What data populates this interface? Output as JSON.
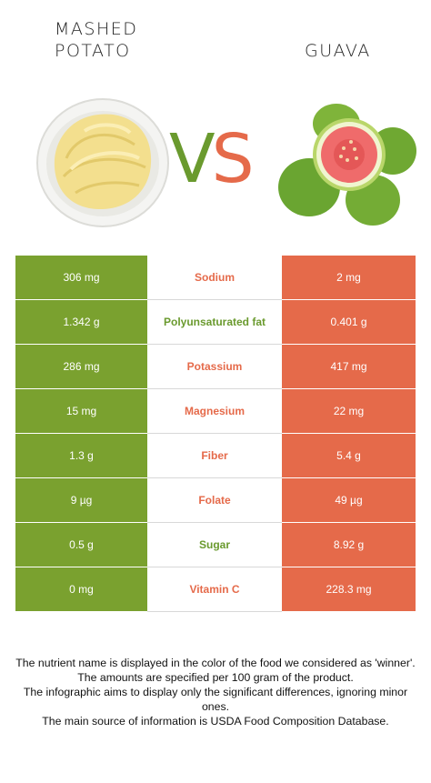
{
  "header": {
    "left_title": "MASHED POTATO",
    "right_title": "GUAVA",
    "vs_v": "V",
    "vs_s": "S"
  },
  "colors": {
    "left_food": "#7aa12f",
    "right_food": "#e56a4a"
  },
  "rows": [
    {
      "nutrient": "Sodium",
      "left": "306 mg",
      "right": "2 mg",
      "winner": "right"
    },
    {
      "nutrient": "Polyunsaturated fat",
      "left": "1.342 g",
      "right": "0.401 g",
      "winner": "left"
    },
    {
      "nutrient": "Potassium",
      "left": "286 mg",
      "right": "417 mg",
      "winner": "right"
    },
    {
      "nutrient": "Magnesium",
      "left": "15 mg",
      "right": "22 mg",
      "winner": "right"
    },
    {
      "nutrient": "Fiber",
      "left": "1.3 g",
      "right": "5.4 g",
      "winner": "right"
    },
    {
      "nutrient": "Folate",
      "left": "9 µg",
      "right": "49 µg",
      "winner": "right"
    },
    {
      "nutrient": "Sugar",
      "left": "0.5 g",
      "right": "8.92 g",
      "winner": "left"
    },
    {
      "nutrient": "Vitamin C",
      "left": "0 mg",
      "right": "228.3 mg",
      "winner": "right"
    }
  ],
  "footer": {
    "line1": "The nutrient name is displayed in the color of the food we considered as 'winner'.",
    "line2": "The amounts are specified per 100 gram of the product.",
    "line3": "The infographic aims to display only the significant differences, ignoring minor ones.",
    "line4": "The main source of information is USDA Food Composition Database."
  }
}
